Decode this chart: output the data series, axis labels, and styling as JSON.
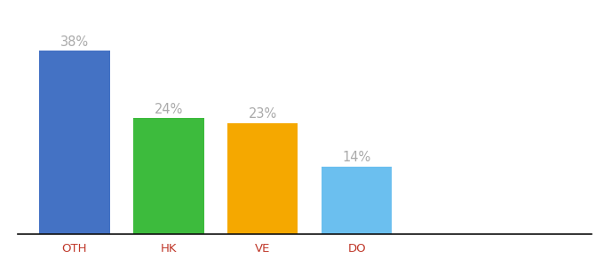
{
  "categories": [
    "OTH",
    "HK",
    "VE",
    "DO"
  ],
  "values": [
    38,
    24,
    23,
    14
  ],
  "labels": [
    "38%",
    "24%",
    "23%",
    "14%"
  ],
  "bar_colors": [
    "#4472c4",
    "#3dbb3d",
    "#f5a800",
    "#6bbfef"
  ],
  "background_color": "#ffffff",
  "ylim": [
    0,
    44
  ],
  "bar_width": 0.75,
  "label_fontsize": 10.5,
  "tick_fontsize": 9.5,
  "tick_color": "#c0392b",
  "label_color": "#aaaaaa",
  "figsize": [
    6.8,
    3.0
  ],
  "dpi": 100
}
